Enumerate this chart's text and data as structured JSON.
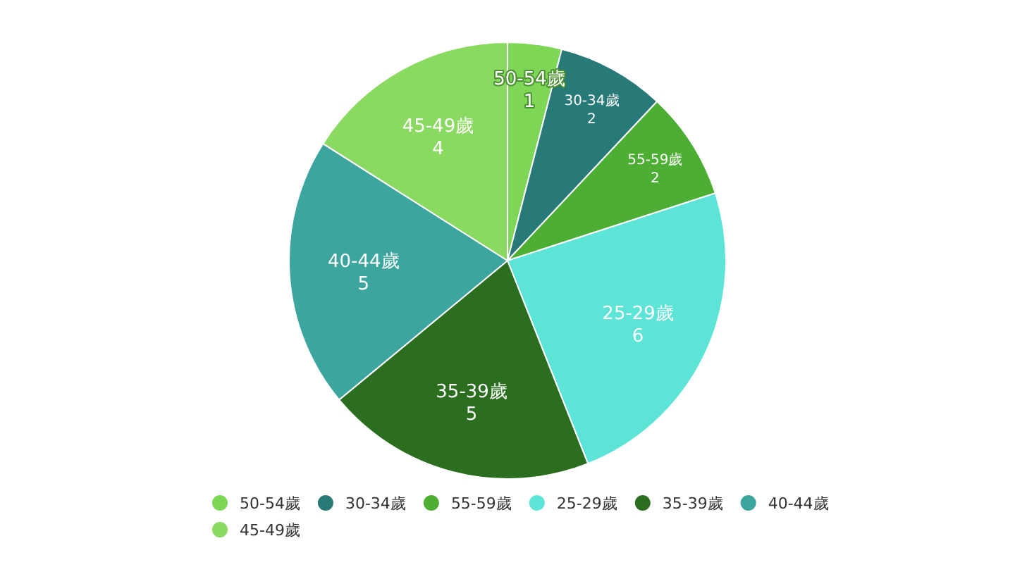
{
  "chart_data": {
    "type": "pie",
    "categories": [
      "50-54歲",
      "30-34歲",
      "55-59歲",
      "25-29歲",
      "35-39歲",
      "40-44歲",
      "45-49歲"
    ],
    "values": [
      1,
      2,
      2,
      6,
      5,
      5,
      4
    ],
    "colors": [
      "#7dd655",
      "#277a77",
      "#4cae32",
      "#5ce4d6",
      "#2b6e1f",
      "#3ca59e",
      "#8ad960"
    ],
    "data_labels": true,
    "legend": "bottom"
  }
}
